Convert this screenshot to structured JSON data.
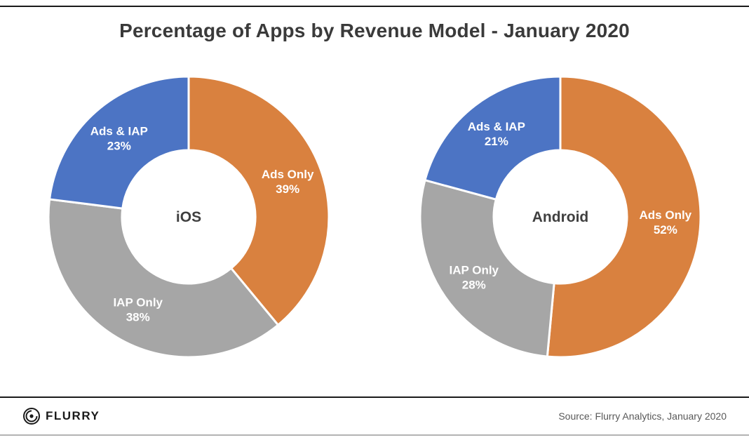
{
  "title": "Percentage of Apps by Revenue Model - January 2020",
  "footer": {
    "brand": "FLURRY",
    "source": "Source: Flurry Analytics, January 2020"
  },
  "colors": {
    "ads_only": "#D9813F",
    "iap_only": "#A6A6A6",
    "ads_and_iap": "#4C74C4",
    "slice_label_text": "#FFFFFF",
    "center_label_text": "#3F3F3F"
  },
  "chart_data": [
    {
      "type": "pie",
      "variant": "donut",
      "center_label": "iOS",
      "start_angle_deg": 0,
      "direction": "clockwise",
      "legend_position": "none",
      "slices": [
        {
          "label": "Ads Only",
          "value": 39,
          "color": "#D9813F"
        },
        {
          "label": "IAP Only",
          "value": 38,
          "color": "#A6A6A6"
        },
        {
          "label": "Ads & IAP",
          "value": 23,
          "color": "#4C74C4"
        }
      ]
    },
    {
      "type": "pie",
      "variant": "donut",
      "center_label": "Android",
      "start_angle_deg": 0,
      "direction": "clockwise",
      "legend_position": "none",
      "slices": [
        {
          "label": "Ads Only",
          "value": 52,
          "color": "#D9813F"
        },
        {
          "label": "IAP Only",
          "value": 28,
          "color": "#A6A6A6"
        },
        {
          "label": "Ads & IAP",
          "value": 21,
          "color": "#4C74C4"
        }
      ]
    }
  ]
}
